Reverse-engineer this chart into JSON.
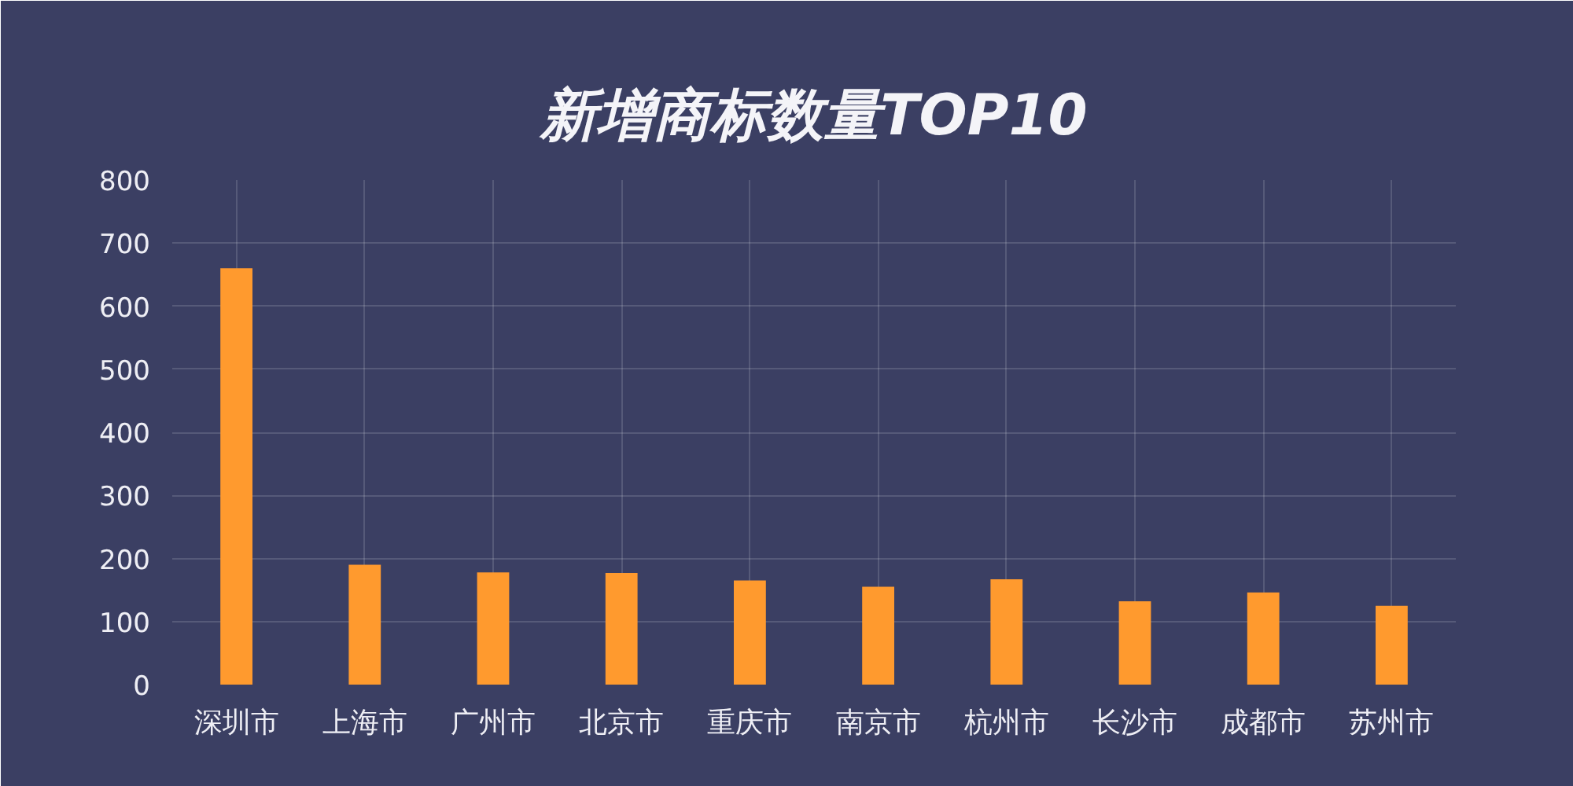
{
  "chart_data": {
    "type": "bar",
    "title": "新增商标数量TOP10",
    "categories": [
      "深圳市",
      "上海市",
      "广州市",
      "北京市",
      "重庆市",
      "南京市",
      "杭州市",
      "长沙市",
      "成都市",
      "苏州市"
    ],
    "values": [
      660,
      190,
      178,
      177,
      165,
      155,
      167,
      132,
      146,
      125
    ],
    "color": "#ff9a2e",
    "ylim": [
      0,
      800
    ],
    "yticks": [
      0,
      100,
      200,
      300,
      400,
      500,
      600,
      700,
      800
    ],
    "grid": true
  }
}
